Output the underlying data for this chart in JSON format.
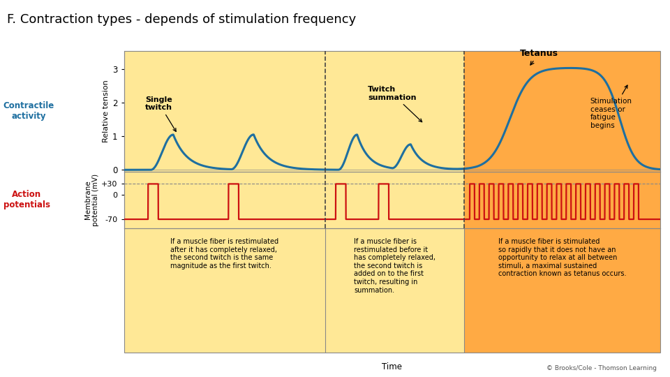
{
  "title": "F. Contraction types - depends of stimulation frequency",
  "title_fontsize": 13,
  "bg_light": "#FFE896",
  "bg_dark": "#FFAA44",
  "contractile_color": "#1E6FA0",
  "action_color": "#CC1111",
  "contractile_label": "Contractile\nactivity",
  "contractile_label_color": "#1E6FA0",
  "action_label": "Action\npotentials",
  "action_label_color": "#CC1111",
  "ylabel_upper": "Relative tension",
  "ylabel_lower": "Membrane\npotential (mV)",
  "xlabel": "Time",
  "copyright": "© Brooks/Cole - Thomson Learning",
  "annotation_single_twitch": "Single\ntwitch",
  "annotation_twitch_summation": "Twitch\nsummation",
  "annotation_tetanus": "Tetanus",
  "annotation_stimulation": "Stimulation\nceases or\nfatigue\nbegins",
  "text1": "If a muscle fiber is restimulated\nafter it has completely relaxed,\nthe second twitch is the same\nmagnitude as the first twitch.",
  "text2": "If a muscle fiber is\nrestimulated before it\nhas completely relaxed,\nthe second twitch is\nadded on to the first\ntwitch, resulting in\nsummation.",
  "text3": "If a muscle fiber is stimulated\nso rapidly that it does not have an\nopportunity to relax at all between\nstimuli, a maximal sustained\ncontraction known as tetanus occurs.",
  "s1": 0.375,
  "s2": 0.635
}
